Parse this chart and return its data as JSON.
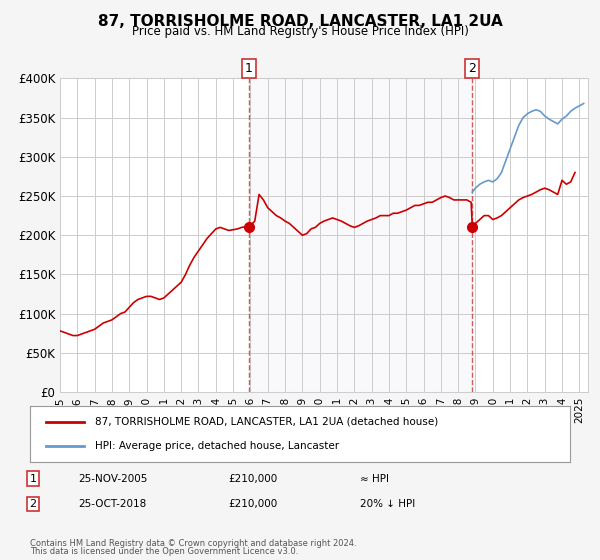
{
  "title": "87, TORRISHOLME ROAD, LANCASTER, LA1 2UA",
  "subtitle": "Price paid vs. HM Land Registry's House Price Index (HPI)",
  "xlabel": "",
  "ylabel": "",
  "ylim": [
    0,
    400000
  ],
  "yticks": [
    0,
    50000,
    100000,
    150000,
    200000,
    250000,
    300000,
    350000,
    400000
  ],
  "ytick_labels": [
    "£0",
    "£50K",
    "£100K",
    "£150K",
    "£200K",
    "£250K",
    "£300K",
    "£350K",
    "£400K"
  ],
  "xlim_start": 1995.0,
  "xlim_end": 2025.5,
  "xticks": [
    1995,
    1996,
    1997,
    1998,
    1999,
    2000,
    2001,
    2002,
    2003,
    2004,
    2005,
    2006,
    2007,
    2008,
    2009,
    2010,
    2011,
    2012,
    2013,
    2014,
    2015,
    2016,
    2017,
    2018,
    2019,
    2020,
    2021,
    2022,
    2023,
    2024,
    2025
  ],
  "red_line_color": "#cc0000",
  "blue_line_color": "#6699cc",
  "marker_color": "#cc0000",
  "vline_color": "#cc3333",
  "bg_color": "#f5f5f5",
  "plot_bg_color": "#ffffff",
  "grid_color": "#cccccc",
  "sale1_x": 2005.9,
  "sale1_y": 210000,
  "sale2_x": 2018.82,
  "sale2_y": 210000,
  "legend_label_red": "87, TORRISHOLME ROAD, LANCASTER, LA1 2UA (detached house)",
  "legend_label_blue": "HPI: Average price, detached house, Lancaster",
  "annotation1_label": "1",
  "annotation2_label": "2",
  "table_row1": [
    "1",
    "25-NOV-2005",
    "£210,000",
    "≈ HPI"
  ],
  "table_row2": [
    "2",
    "25-OCT-2018",
    "£210,000",
    "20% ↓ HPI"
  ],
  "footer1": "Contains HM Land Registry data © Crown copyright and database right 2024.",
  "footer2": "This data is licensed under the Open Government Licence v3.0.",
  "red_hpi_data": {
    "x": [
      1995.0,
      1995.25,
      1995.5,
      1995.75,
      1996.0,
      1996.25,
      1996.5,
      1996.75,
      1997.0,
      1997.25,
      1997.5,
      1997.75,
      1998.0,
      1998.25,
      1998.5,
      1998.75,
      1999.0,
      1999.25,
      1999.5,
      1999.75,
      2000.0,
      2000.25,
      2000.5,
      2000.75,
      2001.0,
      2001.25,
      2001.5,
      2001.75,
      2002.0,
      2002.25,
      2002.5,
      2002.75,
      2003.0,
      2003.25,
      2003.5,
      2003.75,
      2004.0,
      2004.25,
      2004.5,
      2004.75,
      2005.0,
      2005.25,
      2005.5,
      2005.75,
      2005.9,
      2006.0,
      2006.25,
      2006.5,
      2006.75,
      2007.0,
      2007.25,
      2007.5,
      2007.75,
      2008.0,
      2008.25,
      2008.5,
      2008.75,
      2009.0,
      2009.25,
      2009.5,
      2009.75,
      2010.0,
      2010.25,
      2010.5,
      2010.75,
      2011.0,
      2011.25,
      2011.5,
      2011.75,
      2012.0,
      2012.25,
      2012.5,
      2012.75,
      2013.0,
      2013.25,
      2013.5,
      2013.75,
      2014.0,
      2014.25,
      2014.5,
      2014.75,
      2015.0,
      2015.25,
      2015.5,
      2015.75,
      2016.0,
      2016.25,
      2016.5,
      2016.75,
      2017.0,
      2017.25,
      2017.5,
      2017.75,
      2018.0,
      2018.25,
      2018.5,
      2018.75,
      2018.82
    ],
    "y": [
      78000,
      76000,
      74000,
      72000,
      72000,
      74000,
      76000,
      78000,
      80000,
      84000,
      88000,
      90000,
      92000,
      96000,
      100000,
      102000,
      108000,
      114000,
      118000,
      120000,
      122000,
      122000,
      120000,
      118000,
      120000,
      125000,
      130000,
      135000,
      140000,
      150000,
      162000,
      172000,
      180000,
      188000,
      196000,
      202000,
      208000,
      210000,
      208000,
      206000,
      207000,
      208000,
      210000,
      211000,
      210000,
      212000,
      218000,
      252000,
      245000,
      235000,
      230000,
      225000,
      222000,
      218000,
      215000,
      210000,
      205000,
      200000,
      202000,
      208000,
      210000,
      215000,
      218000,
      220000,
      222000,
      220000,
      218000,
      215000,
      212000,
      210000,
      212000,
      215000,
      218000,
      220000,
      222000,
      225000,
      225000,
      225000,
      228000,
      228000,
      230000,
      232000,
      235000,
      238000,
      238000,
      240000,
      242000,
      242000,
      245000,
      248000,
      250000,
      248000,
      245000,
      245000,
      245000,
      245000,
      242000,
      210000
    ]
  },
  "red_after_data": {
    "x": [
      2018.82,
      2019.0,
      2019.25,
      2019.5,
      2019.75,
      2020.0,
      2020.25,
      2020.5,
      2020.75,
      2021.0,
      2021.25,
      2021.5,
      2021.75,
      2022.0,
      2022.25,
      2022.5,
      2022.75,
      2023.0,
      2023.25,
      2023.5,
      2023.75,
      2024.0,
      2024.25,
      2024.5,
      2024.75
    ],
    "y": [
      210000,
      215000,
      220000,
      225000,
      225000,
      220000,
      222000,
      225000,
      230000,
      235000,
      240000,
      245000,
      248000,
      250000,
      252000,
      255000,
      258000,
      260000,
      258000,
      255000,
      252000,
      270000,
      265000,
      268000,
      280000
    ]
  },
  "blue_hpi_data": {
    "x": [
      2018.82,
      2019.0,
      2019.25,
      2019.5,
      2019.75,
      2020.0,
      2020.25,
      2020.5,
      2020.75,
      2021.0,
      2021.25,
      2021.5,
      2021.75,
      2022.0,
      2022.25,
      2022.5,
      2022.75,
      2023.0,
      2023.25,
      2023.5,
      2023.75,
      2024.0,
      2024.25,
      2024.5,
      2024.75,
      2025.0,
      2025.25
    ],
    "y": [
      255000,
      260000,
      265000,
      268000,
      270000,
      268000,
      272000,
      280000,
      295000,
      310000,
      325000,
      340000,
      350000,
      355000,
      358000,
      360000,
      358000,
      352000,
      348000,
      345000,
      342000,
      348000,
      352000,
      358000,
      362000,
      365000,
      368000
    ]
  }
}
